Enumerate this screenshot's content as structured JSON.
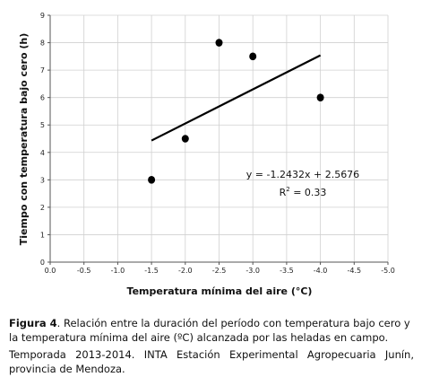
{
  "chart_data": {
    "type": "scatter",
    "title": "",
    "xlabel": "Temperatura mínima del aire (°C)",
    "ylabel": "Tiempo con temperatura bajo cero (h)",
    "xlim": [
      0,
      -5
    ],
    "ylim": [
      0,
      9
    ],
    "x_ticks": [
      0,
      -0.5,
      -1,
      -1.5,
      -2,
      -2.5,
      -3,
      -3.5,
      -4,
      -4.5,
      -5
    ],
    "x_tick_labels": [
      "0.0",
      "-0.5",
      "-1.0",
      "-1.5",
      "-2.0",
      "-2.5",
      "-3.0",
      "-3.5",
      "-4.0",
      "-4.5",
      "-5.0"
    ],
    "y_ticks": [
      0,
      1,
      2,
      3,
      4,
      5,
      6,
      7,
      8,
      9
    ],
    "y_tick_labels": [
      "0",
      "1",
      "2",
      "3",
      "4",
      "5",
      "6",
      "7",
      "8",
      "9"
    ],
    "grid": true,
    "legend": "none",
    "points": [
      {
        "x": -1.5,
        "y": 3.0
      },
      {
        "x": -2.0,
        "y": 4.5
      },
      {
        "x": -2.5,
        "y": 8.0
      },
      {
        "x": -3.0,
        "y": 7.5
      },
      {
        "x": -4.0,
        "y": 6.0
      }
    ],
    "trendline": {
      "slope": -1.2432,
      "intercept": 2.5676,
      "x_range": [
        -1.5,
        -4.0
      ]
    },
    "annotations": {
      "equation": "y = -1.2432x + 2.5676",
      "r2_base": "R",
      "r2_exp": "2",
      "r2_value": " = 0.33"
    },
    "colors": {
      "points": "#000000",
      "trendline": "#000000",
      "grid": "#d0d0d0",
      "axis": "#555555"
    }
  },
  "caption": {
    "label": "Figura 4",
    "line1": ". Relación entre la duración del período con temperatura bajo cero y la temperatura mínima del aire (ºC) alcanzada por las heladas en campo.",
    "line2": "Temporada 2013-2014. INTA Estación Experimental Agropecuaria Junín, provincia de Mendoza."
  }
}
